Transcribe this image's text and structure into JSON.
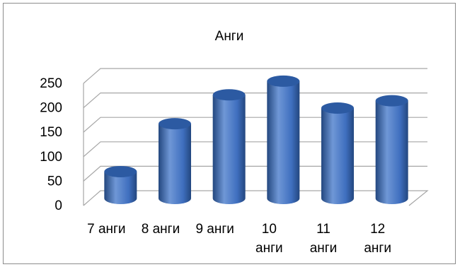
{
  "chart_data": {
    "type": "bar",
    "style": "3d-cylinder",
    "title": "Анги",
    "xlabel": "",
    "ylabel": "",
    "categories": [
      [
        "7 анги"
      ],
      [
        "8 анги"
      ],
      [
        "9 анги"
      ],
      [
        "10",
        "анги"
      ],
      [
        "11",
        "анги"
      ],
      [
        "12",
        "анги"
      ]
    ],
    "values": [
      55,
      153,
      212,
      240,
      185,
      200
    ],
    "ylim": [
      0,
      250
    ],
    "yticks": [
      "0",
      "50",
      "100",
      "150",
      "200",
      "250"
    ],
    "grid": true,
    "legend": "none",
    "colors": {
      "bar_light": "#6f97d6",
      "bar_mid": "#3f6fbf",
      "bar_dark": "#23477f",
      "bar_top": "#2c5aa2",
      "grid": "#a6a6a6"
    }
  }
}
